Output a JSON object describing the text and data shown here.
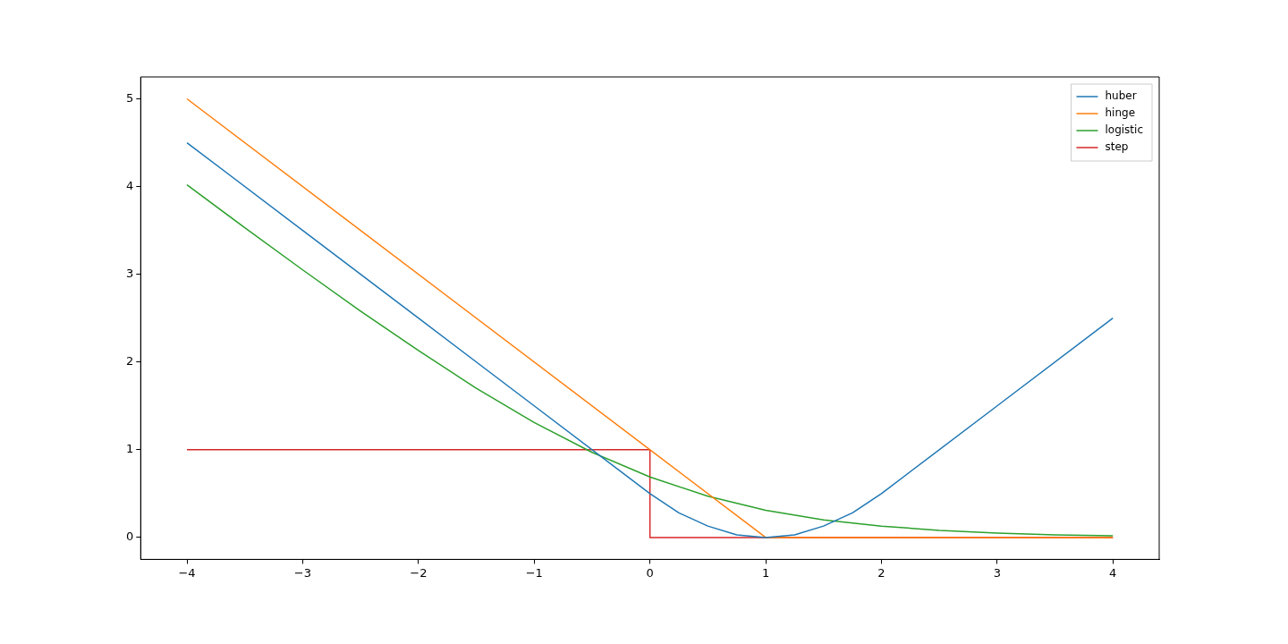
{
  "chart_data": {
    "type": "line",
    "legend": "top right",
    "marker": "none",
    "line_style": "solid",
    "grid": false,
    "xlim": [
      -4.4,
      4.4
    ],
    "ylim": [
      -0.25,
      5.25
    ],
    "xticks": [
      {
        "value": -4,
        "label": "−4"
      },
      {
        "value": -3,
        "label": "−3"
      },
      {
        "value": -2,
        "label": "−2"
      },
      {
        "value": -1,
        "label": "−1"
      },
      0,
      1,
      2,
      3,
      4
    ],
    "yticks": [
      0,
      1,
      2,
      3,
      4,
      5
    ],
    "series": [
      {
        "name": "huber",
        "color": "#1f77b4",
        "x": [
          -4,
          -3,
          -2,
          -1,
          0,
          0.25,
          0.5,
          0.75,
          1,
          1.25,
          1.5,
          1.75,
          2,
          3,
          4
        ],
        "values": [
          4.5,
          3.5,
          2.5,
          1.5,
          0.5,
          0.28,
          0.13,
          0.03,
          0,
          0.03,
          0.13,
          0.28,
          0.5,
          1.5,
          2.5
        ]
      },
      {
        "name": "hinge",
        "color": "#ff7f0e",
        "x": [
          -4,
          1,
          4
        ],
        "values": [
          5,
          0,
          0
        ]
      },
      {
        "name": "logistic",
        "color": "#2ca02c",
        "x": [
          -4,
          -3.5,
          -3,
          -2.5,
          -2,
          -1.5,
          -1,
          -0.5,
          0,
          0.5,
          1,
          1.5,
          2,
          2.5,
          3,
          3.5,
          4
        ],
        "values": [
          4.02,
          3.53,
          3.05,
          2.58,
          2.13,
          1.7,
          1.31,
          0.97,
          0.69,
          0.47,
          0.31,
          0.2,
          0.13,
          0.08,
          0.05,
          0.03,
          0.02
        ]
      },
      {
        "name": "step",
        "color": "#d62728",
        "x": [
          -4,
          0,
          0,
          4
        ],
        "values": [
          1,
          1,
          0,
          0
        ]
      }
    ]
  }
}
